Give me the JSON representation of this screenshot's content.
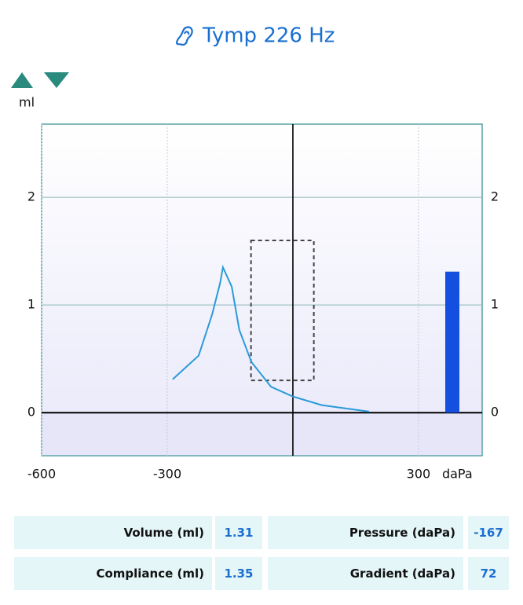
{
  "chart_data": {
    "type": "line",
    "title": "Tymp 226 Hz",
    "y_label": "ml",
    "x_label": "daPa",
    "x": [
      -287,
      -225,
      -193,
      -174,
      -167,
      -146,
      -128,
      -99,
      -52,
      0,
      69,
      182
    ],
    "series": [
      {
        "color": "#2a9ad8",
        "values": [
          0.31,
          0.53,
          0.91,
          1.2,
          1.35,
          1.17,
          0.77,
          0.47,
          0.24,
          0.15,
          0.07,
          0.01
        ]
      }
    ],
    "xlim": [
      -600,
      452
    ],
    "xticks": [
      -600,
      -300,
      300
    ],
    "ylim": [
      -0.4,
      2.68
    ],
    "yticks": [
      0,
      1,
      2
    ],
    "y2lim": [
      -0.4,
      2.68
    ],
    "y2ticks": [
      0,
      1,
      2
    ],
    "grid": true,
    "normal_region": {
      "x": [
        -100,
        50
      ],
      "y": [
        0.3,
        1.6
      ]
    },
    "volume_bar": {
      "value": 1.31,
      "color": "#1450e0"
    }
  },
  "results": [
    [
      {
        "label": "Volume (ml)",
        "value": 1.31
      },
      {
        "label": "Pressure (daPa)",
        "value": -167
      }
    ],
    [
      {
        "label": "Compliance (ml)",
        "value": 1.35
      },
      {
        "label": "Gradient (daPa)",
        "value": 72
      }
    ]
  ]
}
